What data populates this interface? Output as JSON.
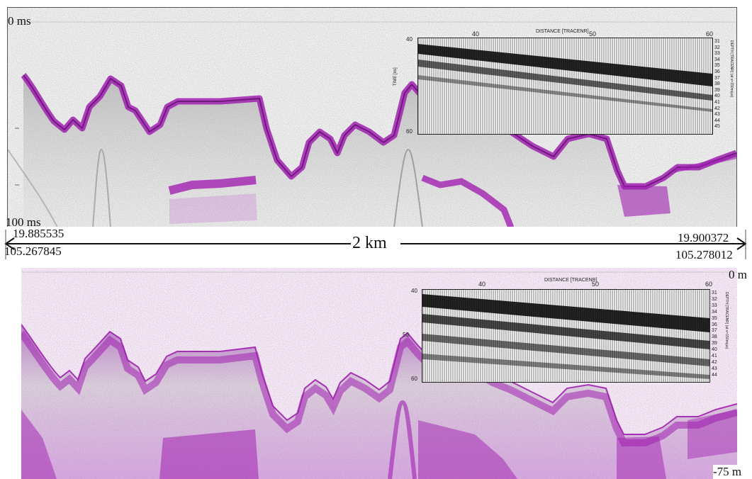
{
  "top_panel": {
    "time_top": "0 ms",
    "time_bottom": "100 ms",
    "inset": {
      "title": "DISTANCE [TRACENR]",
      "x_ticks": [
        "40",
        "50",
        "60"
      ],
      "y_left_ticks": [
        "40",
        "60"
      ],
      "y_left_label": "TIME [ns]",
      "y_right_ticks": [
        "31",
        "32",
        "33",
        "34",
        "35",
        "36",
        "37",
        "38",
        "39",
        "40",
        "41",
        "42",
        "43",
        "44",
        "45"
      ],
      "y_right_label": "DEPTH [TRACENR] (at v=150m/µs)"
    }
  },
  "scale_bar": {
    "left_lat": "19.885535",
    "left_lon": "105.267845",
    "right_lat": "19.900372",
    "right_lon": "105.278012",
    "distance": "2 km"
  },
  "bottom_panel": {
    "depth_top": "0 m",
    "depth_bottom": "-75 m",
    "inset": {
      "title": "DISTANCE [TRACENR]",
      "x_ticks": [
        "40",
        "50",
        "60"
      ],
      "y_left_ticks": [
        "40",
        "50",
        "60"
      ],
      "y_right_ticks": [
        "31",
        "32",
        "33",
        "34",
        "35",
        "36",
        "37",
        "38",
        "39",
        "40",
        "41",
        "42",
        "43",
        "44"
      ],
      "y_right_label": "DEPTH [TRACENR] (at v=150m/µs)"
    }
  },
  "colors": {
    "reflector": "#a020b0",
    "scatter": "#8a8a8a",
    "ink": "#111111"
  }
}
